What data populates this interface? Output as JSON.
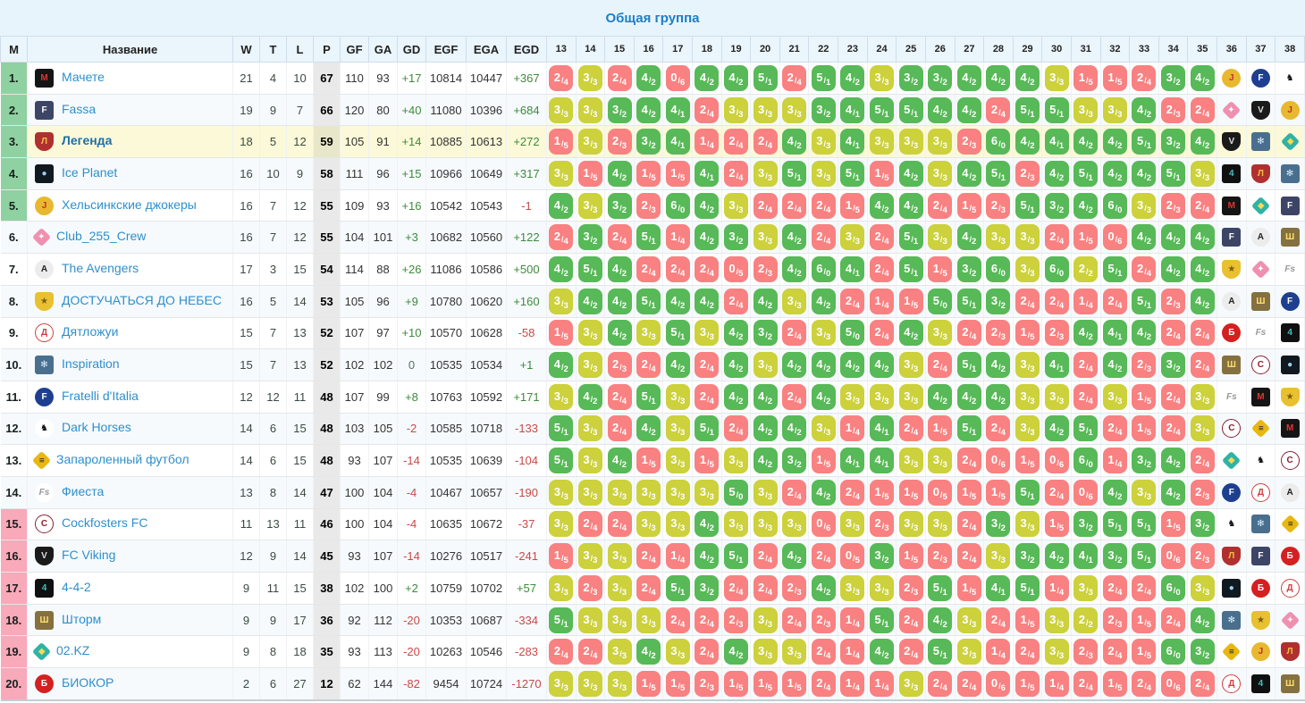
{
  "title": "Общая группа",
  "stat_headers": [
    "M",
    "Название",
    "W",
    "T",
    "L",
    "P",
    "GF",
    "GA",
    "GD",
    "EGF",
    "EGA",
    "EGD"
  ],
  "rounds": [
    "13",
    "14",
    "15",
    "16",
    "17",
    "18",
    "19",
    "20",
    "21",
    "22",
    "23",
    "24",
    "25",
    "26",
    "27",
    "28",
    "29",
    "30",
    "31",
    "32",
    "33",
    "34",
    "35",
    "36",
    "37",
    "38"
  ],
  "colors": {
    "win": "#57b957",
    "draw": "#ccd13c",
    "loss": "#f98181",
    "zone_green": "#8fd1a0",
    "zone_pink": "#f8a9ba",
    "highlight_row": "#fbf9d8",
    "link": "#2f8fcc",
    "title": "#1c7fc4"
  },
  "logos": {
    "machete": {
      "shape": "sq",
      "bg": "#151515",
      "fg": "#e03434",
      "glyph": "M"
    },
    "fassa": {
      "shape": "sq",
      "bg": "#3d4566",
      "fg": "#ffffff",
      "glyph": "F"
    },
    "legenda": {
      "shape": "sh",
      "bg": "#b03030",
      "fg": "#f0c040",
      "glyph": "Л"
    },
    "iceplanet": {
      "shape": "sq",
      "bg": "#101820",
      "fg": "#9fd0f0",
      "glyph": "●"
    },
    "jokers": {
      "shape": "ci",
      "bg": "#e8b830",
      "fg": "#c03030",
      "glyph": "J"
    },
    "club255": {
      "shape": "di",
      "bg": "#f090b0",
      "fg": "#ffffff",
      "glyph": "✦"
    },
    "avengers": {
      "shape": "ci",
      "bg": "#ececec",
      "fg": "#222222",
      "glyph": "A"
    },
    "dostuchatsya": {
      "shape": "sh",
      "bg": "#e8c030",
      "fg": "#7a5c10",
      "glyph": "★"
    },
    "dyatlozhui": {
      "shape": "ci",
      "bg": "#ffffff",
      "fg": "#d04040",
      "glyph": "Д",
      "border": "#d04040"
    },
    "inspiration": {
      "shape": "sq",
      "bg": "#4a6f8e",
      "fg": "#d8f0ff",
      "glyph": "✻"
    },
    "fratelli": {
      "shape": "ci",
      "bg": "#1e3f8f",
      "fg": "#ffffff",
      "glyph": "F"
    },
    "darkhorses": {
      "shape": "ci",
      "bg": "#ffffff",
      "fg": "#111111",
      "glyph": "♞"
    },
    "zaparoleny": {
      "shape": "di",
      "bg": "#e8b810",
      "fg": "#222222",
      "glyph": "≡"
    },
    "fiesta": {
      "shape": "ci",
      "bg": "#ffffff",
      "fg": "#999999",
      "glyph": "Fs",
      "italic": true
    },
    "cockfosters": {
      "shape": "ci",
      "bg": "#ffffff",
      "fg": "#8a2030",
      "glyph": "C",
      "border": "#8a2030"
    },
    "fcviking": {
      "shape": "sh",
      "bg": "#1a1a1a",
      "fg": "#dddddd",
      "glyph": "V"
    },
    "f442": {
      "shape": "sq",
      "bg": "#101010",
      "fg": "#40c0c0",
      "glyph": "4"
    },
    "shtorm": {
      "shape": "sq",
      "bg": "#857040",
      "fg": "#ffe070",
      "glyph": "Ш"
    },
    "o2kz": {
      "shape": "di",
      "bg": "#2fb3a6",
      "fg": "#ffd850",
      "glyph": "◆"
    },
    "biokor": {
      "shape": "ci",
      "bg": "#d42020",
      "fg": "#ffffff",
      "glyph": "Б"
    }
  },
  "teams": [
    {
      "place": "1.",
      "name": "Мачете",
      "logo": "machete",
      "zone": "green",
      "highlight": false,
      "w": "21",
      "t": "4",
      "l": "10",
      "p": "67",
      "gf": "110",
      "ga": "93",
      "gd": "+17",
      "egf": "10814",
      "ega": "10447",
      "egd": "+367",
      "results": [
        "2/4",
        "3/3",
        "2/4",
        "4/2",
        "0/6",
        "4/2",
        "4/2",
        "5/1",
        "2/4",
        "5/1",
        "4/2",
        "3/3",
        "3/2",
        "3/2",
        "4/2",
        "4/2",
        "4/2",
        "3/3",
        "1/5",
        "1/5",
        "2/4",
        "3/2",
        "4/2"
      ],
      "next": [
        "jokers",
        "fratelli",
        "darkhorses"
      ]
    },
    {
      "place": "2.",
      "name": "Fassa",
      "logo": "fassa",
      "zone": "green",
      "highlight": false,
      "w": "19",
      "t": "9",
      "l": "7",
      "p": "66",
      "gf": "120",
      "ga": "80",
      "gd": "+40",
      "egf": "11080",
      "ega": "10396",
      "egd": "+684",
      "results": [
        "3/3",
        "3/3",
        "3/2",
        "4/2",
        "4/1",
        "2/4",
        "3/3",
        "3/3",
        "3/3",
        "3/2",
        "4/1",
        "5/1",
        "5/1",
        "4/2",
        "4/2",
        "2/4",
        "5/1",
        "5/1",
        "3/3",
        "3/3",
        "4/2",
        "2/3",
        "2/4"
      ],
      "next": [
        "club255",
        "fcviking",
        "jokers"
      ]
    },
    {
      "place": "3.",
      "name": "Легенда",
      "logo": "legenda",
      "zone": "green",
      "highlight": true,
      "w": "18",
      "t": "5",
      "l": "12",
      "p": "59",
      "gf": "105",
      "ga": "91",
      "gd": "+14",
      "egf": "10885",
      "ega": "10613",
      "egd": "+272",
      "results": [
        "1/5",
        "3/3",
        "2/3",
        "3/2",
        "4/1",
        "1/4",
        "2/4",
        "2/4",
        "4/2",
        "3/3",
        "4/1",
        "3/3",
        "3/3",
        "3/3",
        "2/3",
        "6/0",
        "4/2",
        "4/1",
        "4/2",
        "4/2",
        "5/1",
        "3/2",
        "4/2"
      ],
      "next": [
        "fcviking",
        "inspiration",
        "o2kz"
      ]
    },
    {
      "place": "4.",
      "name": "Ice Planet",
      "logo": "iceplanet",
      "zone": "green",
      "highlight": false,
      "w": "16",
      "t": "10",
      "l": "9",
      "p": "58",
      "gf": "111",
      "ga": "96",
      "gd": "+15",
      "egf": "10966",
      "ega": "10649",
      "egd": "+317",
      "results": [
        "3/3",
        "1/5",
        "4/2",
        "1/5",
        "1/5",
        "4/1",
        "2/4",
        "3/3",
        "5/1",
        "3/3",
        "5/1",
        "1/5",
        "4/2",
        "3/3",
        "4/2",
        "5/1",
        "2/3",
        "4/2",
        "5/1",
        "4/2",
        "4/2",
        "5/1",
        "3/3"
      ],
      "next": [
        "f442",
        "legenda",
        "inspiration"
      ]
    },
    {
      "place": "5.",
      "name": "Хельсинкские джокеры",
      "logo": "jokers",
      "zone": "green",
      "highlight": false,
      "w": "16",
      "t": "7",
      "l": "12",
      "p": "55",
      "gf": "109",
      "ga": "93",
      "gd": "+16",
      "egf": "10542",
      "ega": "10543",
      "egd": "-1",
      "results": [
        "4/2",
        "3/3",
        "3/2",
        "2/3",
        "6/0",
        "4/2",
        "3/3",
        "2/4",
        "2/4",
        "2/4",
        "1/5",
        "4/2",
        "4/2",
        "2/4",
        "1/5",
        "2/3",
        "5/1",
        "3/2",
        "4/2",
        "6/0",
        "3/3",
        "2/3",
        "2/4"
      ],
      "next": [
        "machete",
        "o2kz",
        "fassa"
      ]
    },
    {
      "place": "6.",
      "name": "Club_255_Crew",
      "logo": "club255",
      "zone": "none",
      "highlight": false,
      "w": "16",
      "t": "7",
      "l": "12",
      "p": "55",
      "gf": "104",
      "ga": "101",
      "gd": "+3",
      "egf": "10682",
      "ega": "10560",
      "egd": "+122",
      "results": [
        "2/4",
        "3/2",
        "2/4",
        "5/1",
        "1/4",
        "4/2",
        "3/2",
        "3/3",
        "4/2",
        "2/4",
        "3/3",
        "2/4",
        "5/1",
        "3/3",
        "4/2",
        "3/3",
        "3/3",
        "2/4",
        "1/5",
        "0/6",
        "4/2",
        "4/2",
        "4/2"
      ],
      "next": [
        "fassa",
        "avengers",
        "shtorm"
      ]
    },
    {
      "place": "7.",
      "name": "The Avengers",
      "logo": "avengers",
      "zone": "none",
      "highlight": false,
      "w": "17",
      "t": "3",
      "l": "15",
      "p": "54",
      "gf": "114",
      "ga": "88",
      "gd": "+26",
      "egf": "11086",
      "ega": "10586",
      "egd": "+500",
      "results": [
        "4/2",
        "5/1",
        "4/2",
        "2/4",
        "2/4",
        "2/4",
        "0/5",
        "2/3",
        "4/2",
        "6/0",
        "4/1",
        "2/4",
        "5/1",
        "1/5",
        "3/2",
        "6/0",
        "3/3",
        "6/0",
        "2/2",
        "5/1",
        "2/4",
        "4/2",
        "4/2"
      ],
      "next": [
        "dostuchatsya",
        "club255",
        "fiesta"
      ]
    },
    {
      "place": "8.",
      "name": "ДОСТУЧАТЬСЯ ДО НЕБЕС",
      "logo": "dostuchatsya",
      "zone": "none",
      "highlight": false,
      "w": "16",
      "t": "5",
      "l": "14",
      "p": "53",
      "gf": "105",
      "ga": "96",
      "gd": "+9",
      "egf": "10780",
      "ega": "10620",
      "egd": "+160",
      "results": [
        "3/3",
        "4/2",
        "4/2",
        "5/1",
        "4/2",
        "4/2",
        "2/4",
        "4/2",
        "3/3",
        "4/2",
        "2/4",
        "1/4",
        "1/5",
        "5/0",
        "5/1",
        "3/2",
        "2/4",
        "2/4",
        "1/4",
        "2/4",
        "5/1",
        "2/3",
        "4/2"
      ],
      "next": [
        "avengers",
        "shtorm",
        "fratelli"
      ]
    },
    {
      "place": "9.",
      "name": "Дятложуи",
      "logo": "dyatlozhui",
      "zone": "none",
      "highlight": false,
      "w": "15",
      "t": "7",
      "l": "13",
      "p": "52",
      "gf": "107",
      "ga": "97",
      "gd": "+10",
      "egf": "10570",
      "ega": "10628",
      "egd": "-58",
      "results": [
        "1/5",
        "3/3",
        "4/2",
        "3/3",
        "5/1",
        "3/3",
        "4/2",
        "3/2",
        "2/4",
        "3/3",
        "5/0",
        "2/4",
        "4/2",
        "3/3",
        "2/4",
        "2/3",
        "1/5",
        "2/3",
        "4/2",
        "4/1",
        "4/2",
        "2/4",
        "2/4"
      ],
      "next": [
        "biokor",
        "fiesta",
        "f442"
      ]
    },
    {
      "place": "10.",
      "name": "Inspiration",
      "logo": "inspiration",
      "zone": "none",
      "highlight": false,
      "w": "15",
      "t": "7",
      "l": "13",
      "p": "52",
      "gf": "102",
      "ga": "102",
      "gd": "0",
      "egf": "10535",
      "ega": "10534",
      "egd": "+1",
      "results": [
        "4/2",
        "3/3",
        "2/3",
        "2/4",
        "4/2",
        "2/4",
        "4/2",
        "3/3",
        "4/2",
        "4/2",
        "4/2",
        "4/2",
        "3/3",
        "2/4",
        "5/1",
        "4/2",
        "3/3",
        "4/1",
        "2/4",
        "4/2",
        "2/3",
        "3/2",
        "2/4"
      ],
      "next": [
        "shtorm",
        "cockfosters",
        "iceplanet"
      ]
    },
    {
      "place": "11.",
      "name": "Fratelli d'Italia",
      "logo": "fratelli",
      "zone": "none",
      "highlight": false,
      "w": "12",
      "t": "12",
      "l": "11",
      "p": "48",
      "gf": "107",
      "ga": "99",
      "gd": "+8",
      "egf": "10763",
      "ega": "10592",
      "egd": "+171",
      "results": [
        "3/3",
        "4/2",
        "2/4",
        "5/1",
        "3/3",
        "2/4",
        "4/2",
        "4/2",
        "2/4",
        "4/2",
        "3/3",
        "3/3",
        "3/3",
        "4/2",
        "4/2",
        "4/2",
        "3/3",
        "3/3",
        "2/4",
        "3/3",
        "1/5",
        "2/4",
        "3/3"
      ],
      "next": [
        "fiesta",
        "machete",
        "dostuchatsya"
      ]
    },
    {
      "place": "12.",
      "name": "Dark Horses",
      "logo": "darkhorses",
      "zone": "none",
      "highlight": false,
      "w": "14",
      "t": "6",
      "l": "15",
      "p": "48",
      "gf": "103",
      "ga": "105",
      "gd": "-2",
      "egf": "10585",
      "ega": "10718",
      "egd": "-133",
      "results": [
        "5/1",
        "3/3",
        "2/4",
        "4/2",
        "3/3",
        "5/1",
        "2/4",
        "4/2",
        "4/2",
        "3/3",
        "1/4",
        "4/1",
        "2/4",
        "1/5",
        "5/1",
        "2/4",
        "3/3",
        "4/2",
        "5/1",
        "2/4",
        "1/5",
        "2/4",
        "3/3"
      ],
      "next": [
        "cockfosters",
        "zaparoleny",
        "machete"
      ]
    },
    {
      "place": "13.",
      "name": "Запароленный футбол",
      "logo": "zaparoleny",
      "zone": "none",
      "highlight": false,
      "w": "14",
      "t": "6",
      "l": "15",
      "p": "48",
      "gf": "93",
      "ga": "107",
      "gd": "-14",
      "egf": "10535",
      "ega": "10639",
      "egd": "-104",
      "results": [
        "5/1",
        "3/3",
        "4/2",
        "1/5",
        "3/3",
        "1/5",
        "3/3",
        "4/2",
        "3/2",
        "1/5",
        "4/1",
        "4/1",
        "3/3",
        "3/3",
        "2/4",
        "0/6",
        "1/5",
        "0/6",
        "6/0",
        "1/4",
        "3/2",
        "4/2",
        "2/4"
      ],
      "next": [
        "o2kz",
        "darkhorses",
        "cockfosters"
      ]
    },
    {
      "place": "14.",
      "name": "Фиеста",
      "logo": "fiesta",
      "zone": "none",
      "highlight": false,
      "w": "13",
      "t": "8",
      "l": "14",
      "p": "47",
      "gf": "100",
      "ga": "104",
      "gd": "-4",
      "egf": "10467",
      "ega": "10657",
      "egd": "-190",
      "results": [
        "3/3",
        "3/3",
        "3/3",
        "3/3",
        "3/3",
        "3/3",
        "5/0",
        "3/3",
        "2/4",
        "4/2",
        "2/4",
        "1/5",
        "1/5",
        "0/5",
        "1/5",
        "1/5",
        "5/1",
        "2/4",
        "0/6",
        "4/2",
        "3/3",
        "4/2",
        "2/3"
      ],
      "next": [
        "fratelli",
        "dyatlozhui",
        "avengers"
      ]
    },
    {
      "place": "15.",
      "name": "Cockfosters FC",
      "logo": "cockfosters",
      "zone": "pink",
      "highlight": false,
      "w": "11",
      "t": "13",
      "l": "11",
      "p": "46",
      "gf": "100",
      "ga": "104",
      "gd": "-4",
      "egf": "10635",
      "ega": "10672",
      "egd": "-37",
      "results": [
        "3/3",
        "2/4",
        "2/4",
        "3/3",
        "3/3",
        "4/2",
        "3/3",
        "3/3",
        "3/3",
        "0/6",
        "3/3",
        "2/3",
        "3/3",
        "3/3",
        "2/4",
        "3/2",
        "3/3",
        "1/5",
        "3/2",
        "5/1",
        "5/1",
        "1/5",
        "3/2"
      ],
      "next": [
        "darkhorses",
        "inspiration",
        "zaparoleny"
      ]
    },
    {
      "place": "16.",
      "name": "FC Viking",
      "logo": "fcviking",
      "zone": "pink",
      "highlight": false,
      "w": "12",
      "t": "9",
      "l": "14",
      "p": "45",
      "gf": "93",
      "ga": "107",
      "gd": "-14",
      "egf": "10276",
      "ega": "10517",
      "egd": "-241",
      "results": [
        "1/5",
        "3/3",
        "3/3",
        "2/4",
        "1/4",
        "4/2",
        "5/1",
        "2/4",
        "4/2",
        "2/4",
        "0/5",
        "3/2",
        "1/5",
        "2/3",
        "2/4",
        "3/3",
        "3/2",
        "4/2",
        "4/1",
        "3/2",
        "5/1",
        "0/6",
        "2/3"
      ],
      "next": [
        "legenda",
        "fassa",
        "biokor"
      ]
    },
    {
      "place": "17.",
      "name": "4-4-2",
      "logo": "f442",
      "zone": "pink",
      "highlight": false,
      "w": "9",
      "t": "11",
      "l": "15",
      "p": "38",
      "gf": "102",
      "ga": "100",
      "gd": "+2",
      "egf": "10759",
      "ega": "10702",
      "egd": "+57",
      "results": [
        "3/3",
        "2/3",
        "3/3",
        "2/4",
        "5/1",
        "3/2",
        "2/4",
        "2/4",
        "2/3",
        "4/2",
        "3/3",
        "3/3",
        "2/3",
        "5/1",
        "1/5",
        "4/1",
        "5/1",
        "1/4",
        "3/3",
        "2/4",
        "2/4",
        "6/0",
        "3/3"
      ],
      "next": [
        "iceplanet",
        "biokor",
        "dyatlozhui"
      ]
    },
    {
      "place": "18.",
      "name": "Шторм",
      "logo": "shtorm",
      "zone": "pink",
      "highlight": false,
      "w": "9",
      "t": "9",
      "l": "17",
      "p": "36",
      "gf": "92",
      "ga": "112",
      "gd": "-20",
      "egf": "10353",
      "ega": "10687",
      "egd": "-334",
      "results": [
        "5/1",
        "3/3",
        "3/3",
        "3/3",
        "2/4",
        "2/4",
        "2/3",
        "3/3",
        "2/4",
        "2/3",
        "1/4",
        "5/1",
        "2/4",
        "4/2",
        "3/3",
        "2/4",
        "1/5",
        "3/3",
        "2/2",
        "2/3",
        "1/5",
        "2/4",
        "4/2"
      ],
      "next": [
        "inspiration",
        "dostuchatsya",
        "club255"
      ]
    },
    {
      "place": "19.",
      "name": "02.KZ",
      "logo": "o2kz",
      "zone": "pink",
      "highlight": false,
      "w": "9",
      "t": "8",
      "l": "18",
      "p": "35",
      "gf": "93",
      "ga": "113",
      "gd": "-20",
      "egf": "10263",
      "ega": "10546",
      "egd": "-283",
      "results": [
        "2/4",
        "2/4",
        "3/3",
        "4/2",
        "3/3",
        "2/4",
        "4/2",
        "3/3",
        "3/3",
        "2/4",
        "1/4",
        "4/2",
        "2/4",
        "5/1",
        "3/3",
        "1/4",
        "2/4",
        "3/3",
        "2/3",
        "2/4",
        "1/5",
        "6/0",
        "3/2"
      ],
      "next": [
        "zaparoleny",
        "jokers",
        "legenda"
      ]
    },
    {
      "place": "20.",
      "name": "БИОКОР",
      "logo": "biokor",
      "zone": "pink",
      "highlight": false,
      "w": "2",
      "t": "6",
      "l": "27",
      "p": "12",
      "gf": "62",
      "ga": "144",
      "gd": "-82",
      "egf": "9454",
      "ega": "10724",
      "egd": "-1270",
      "results": [
        "3/3",
        "3/3",
        "3/3",
        "1/5",
        "1/5",
        "2/3",
        "1/5",
        "1/5",
        "1/5",
        "2/4",
        "1/4",
        "1/4",
        "3/3",
        "2/4",
        "2/4",
        "0/6",
        "1/5",
        "1/4",
        "2/4",
        "1/5",
        "2/4",
        "0/6",
        "2/4"
      ],
      "next": [
        "dyatlozhui",
        "f442",
        "shtorm"
      ]
    }
  ]
}
